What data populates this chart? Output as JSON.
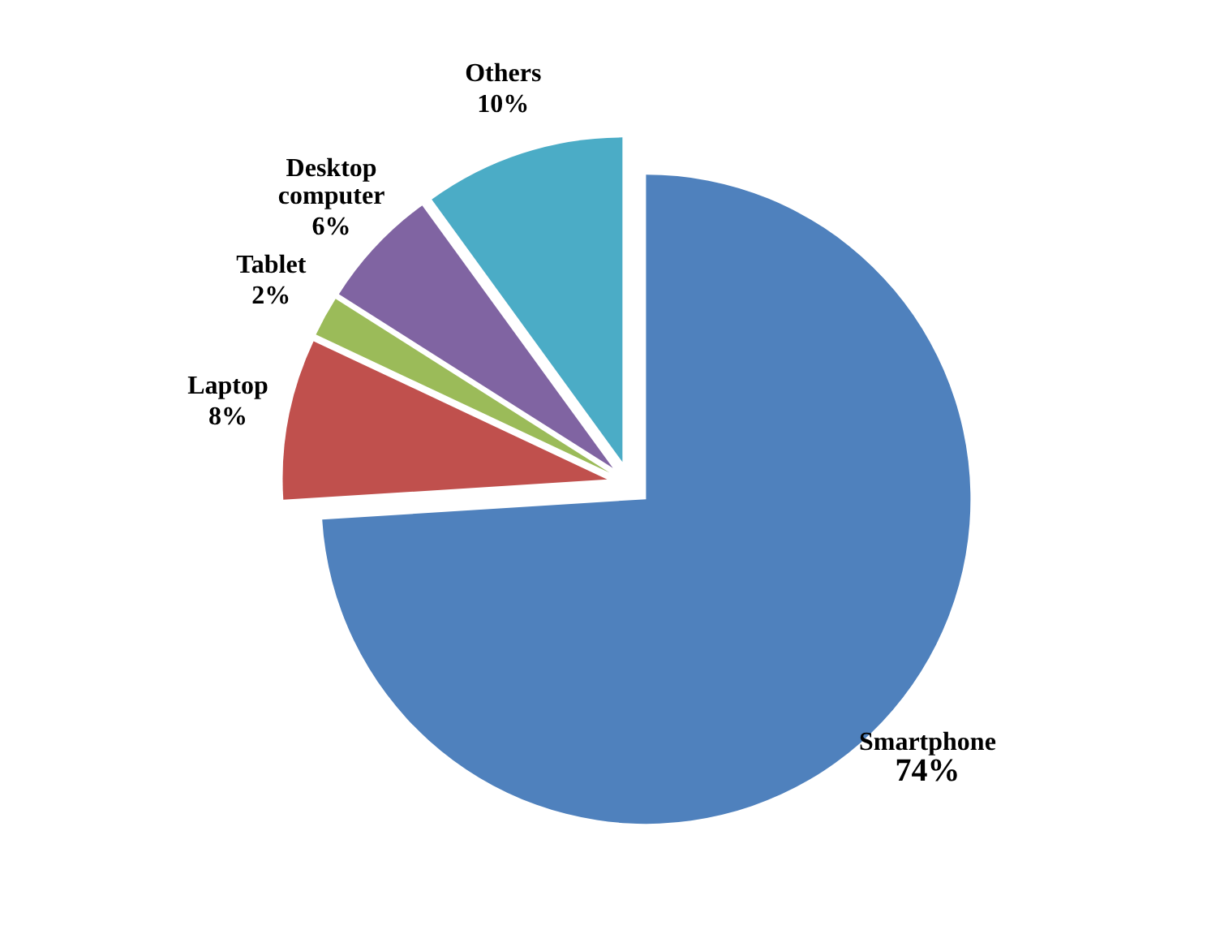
{
  "chart_data": {
    "type": "pie",
    "categories": [
      "Smartphone",
      "Laptop",
      "Tablet",
      "Desktop computer",
      "Others"
    ],
    "values": [
      74,
      8,
      2,
      6,
      10
    ],
    "colors": [
      "#4f81bd",
      "#c0504d",
      "#9bbb59",
      "#8064a2",
      "#4bacc6"
    ],
    "value_labels": [
      "74%",
      "8%",
      "2%",
      "6%",
      "10%"
    ]
  }
}
